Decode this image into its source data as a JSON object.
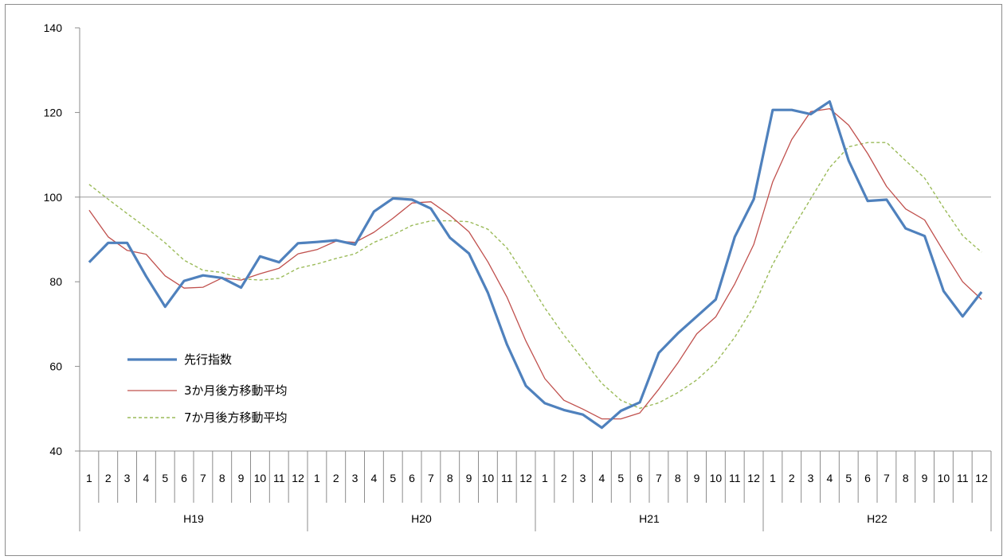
{
  "chart_data": {
    "type": "line",
    "ylim": [
      40,
      140
    ],
    "yticks": [
      40,
      60,
      80,
      100,
      120,
      140
    ],
    "reference_line": 100,
    "grid": false,
    "legend_position": "left-middle",
    "month_labels": [
      "1",
      "2",
      "3",
      "4",
      "5",
      "6",
      "7",
      "8",
      "9",
      "10",
      "11",
      "12"
    ],
    "year_groups": [
      {
        "label": "H19",
        "months": 12
      },
      {
        "label": "H20",
        "months": 12
      },
      {
        "label": "H21",
        "months": 12
      },
      {
        "label": "H22",
        "months": 12
      }
    ],
    "series": [
      {
        "name": "先行指数",
        "color": "#4f81bd",
        "style": "solid-thick",
        "values": [
          84.6,
          89.2,
          89.2,
          81.3,
          74.1,
          80.2,
          81.5,
          80.9,
          78.6,
          86.0,
          84.6,
          89.1,
          89.4,
          89.8,
          88.8,
          96.6,
          99.7,
          99.4,
          97.3,
          90.4,
          86.7,
          77.4,
          65.2,
          55.4,
          51.3,
          49.7,
          48.6,
          45.5,
          49.5,
          51.5,
          63.2,
          67.8,
          71.8,
          75.8,
          90.6,
          99.5,
          120.6,
          120.6,
          119.6,
          122.6,
          108.6,
          99.1,
          99.4,
          92.6,
          90.8,
          77.8,
          71.8,
          77.6
        ]
      },
      {
        "name": "3か月後方移動平均",
        "color": "#c0504d",
        "style": "solid-thin",
        "values": [
          96.9,
          90.6,
          87.4,
          86.5,
          81.4,
          78.5,
          78.7,
          80.9,
          80.4,
          81.9,
          83.2,
          86.6,
          87.6,
          89.6,
          89.3,
          91.7,
          95.0,
          98.6,
          98.9,
          95.7,
          91.8,
          84.7,
          76.4,
          66.0,
          57.1,
          52.0,
          49.9,
          47.6,
          47.6,
          49.0,
          54.6,
          60.8,
          67.7,
          71.7,
          79.5,
          88.8,
          103.6,
          113.6,
          120.2,
          120.9,
          117.0,
          110.3,
          102.5,
          97.2,
          94.6,
          87.2,
          80.0,
          75.8
        ]
      },
      {
        "name": "7か月後方移動平均",
        "color": "#9bbb59",
        "style": "dashed",
        "values": [
          103.0,
          99.5,
          96.1,
          92.8,
          89.2,
          85.1,
          82.7,
          82.2,
          80.7,
          80.4,
          80.8,
          83.2,
          84.2,
          85.5,
          86.6,
          89.3,
          91.1,
          93.3,
          94.4,
          94.4,
          94.2,
          92.4,
          88.0,
          81.1,
          73.8,
          67.4,
          61.7,
          56.0,
          52.0,
          50.1,
          51.4,
          53.8,
          56.8,
          60.9,
          66.9,
          74.2,
          84.1,
          92.2,
          99.6,
          107.0,
          111.9,
          112.9,
          112.9,
          108.6,
          104.5,
          97.5,
          90.9,
          87.0
        ]
      }
    ]
  }
}
